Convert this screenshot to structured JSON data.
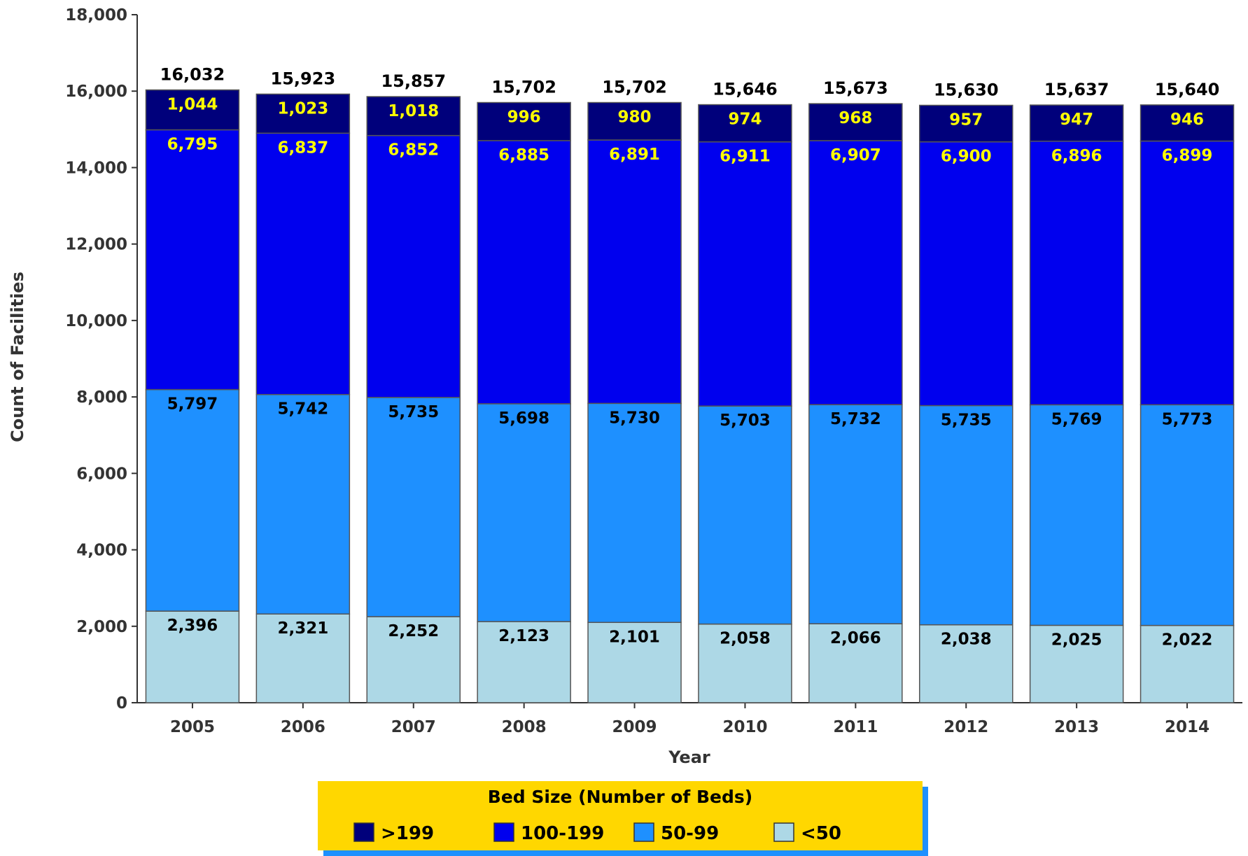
{
  "chart_data": {
    "type": "bar",
    "stacked": true,
    "categories": [
      "2005",
      "2006",
      "2007",
      "2008",
      "2009",
      "2010",
      "2011",
      "2012",
      "2013",
      "2014"
    ],
    "series": [
      {
        "name": "<50",
        "color": "#ADD8E6",
        "label_color": "#000000",
        "values": [
          2396,
          2321,
          2252,
          2123,
          2101,
          2058,
          2066,
          2038,
          2025,
          2022
        ]
      },
      {
        "name": "50-99",
        "color": "#1E90FF",
        "label_color": "#000000",
        "values": [
          5797,
          5742,
          5735,
          5698,
          5730,
          5703,
          5732,
          5735,
          5769,
          5773
        ]
      },
      {
        "name": "100-199",
        "color": "#0000EE",
        "label_color": "#FFFF00",
        "values": [
          6795,
          6837,
          6852,
          6885,
          6891,
          6911,
          6907,
          6900,
          6896,
          6899
        ]
      },
      {
        "name": ">199",
        "color": "#00007B",
        "label_color": "#FFFF00",
        "values": [
          1044,
          1023,
          1018,
          996,
          980,
          974,
          968,
          957,
          947,
          946
        ]
      }
    ],
    "totals": [
      16032,
      15923,
      15857,
      15702,
      15702,
      15646,
      15673,
      15630,
      15637,
      15640
    ],
    "xlabel": "Year",
    "ylabel": "Count of Facilities",
    "ylim": [
      0,
      18000
    ],
    "yticks": [
      0,
      2000,
      4000,
      6000,
      8000,
      10000,
      12000,
      14000,
      16000,
      18000
    ],
    "grid": false,
    "legend": {
      "title": "Bed Size (Number of Beds)",
      "placement": "bottom",
      "order": [
        ">199",
        "100-199",
        "50-99",
        "<50"
      ],
      "background": "#FFD700",
      "shadow": "#1E90FF"
    }
  }
}
